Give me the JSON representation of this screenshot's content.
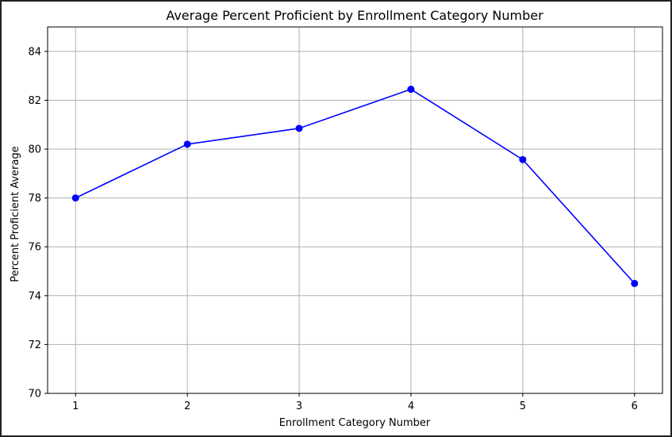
{
  "chart_data": {
    "type": "line",
    "title": "Average Percent Proficient by Enrollment Category Number",
    "xlabel": "Enrollment Category Number",
    "ylabel": "Percent Proficient Average",
    "x": [
      1,
      2,
      3,
      4,
      5,
      6
    ],
    "x_ticks": [
      "1",
      "2",
      "3",
      "4",
      "5",
      "6"
    ],
    "y_ticks": [
      "70",
      "72",
      "74",
      "76",
      "78",
      "80",
      "82",
      "84"
    ],
    "xlim": [
      0.75,
      6.25
    ],
    "ylim": [
      70,
      85
    ],
    "grid": true,
    "series": [
      {
        "values": [
          78.0,
          80.2,
          80.85,
          82.45,
          79.57,
          74.5
        ],
        "color": "#0000ff",
        "marker": "circle"
      }
    ]
  }
}
